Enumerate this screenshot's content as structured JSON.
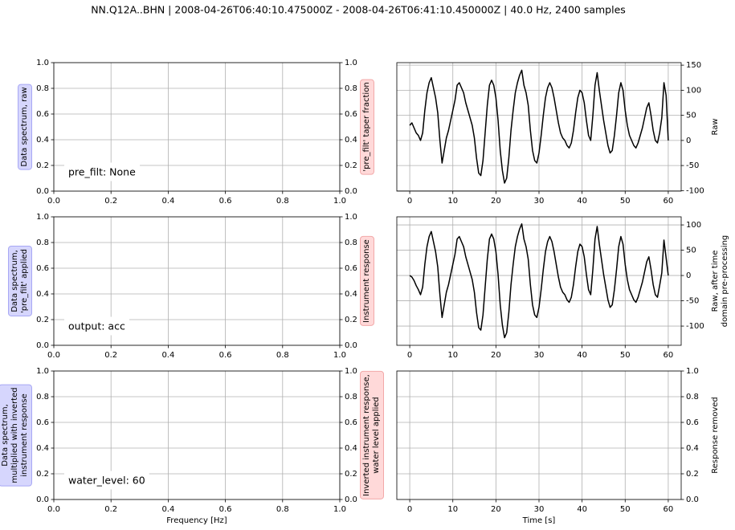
{
  "title": "NN.Q12A..BHN | 2008-04-26T06:40:10.475000Z - 2008-04-26T06:41:10.450000Z | 40.0 Hz, 2400 samples",
  "chart_data": [
    {
      "type": "line",
      "ylabel": "Data spectrum, raw",
      "y2label": "'pre_filt' taper fraction",
      "annotation": "pre_filt: None",
      "xlim": [
        0,
        1
      ],
      "xticks": [
        {
          "value": 0,
          "label": "0.0"
        },
        0.2,
        0.4,
        0.6,
        0.8,
        {
          "value": 1,
          "label": "1.0"
        }
      ],
      "ylim": [
        0,
        1
      ],
      "yticks": [
        {
          "value": 0,
          "label": "0.0"
        },
        0.2,
        0.4,
        0.6,
        0.8,
        {
          "value": 1,
          "label": "1.0"
        }
      ],
      "y2lim": [
        0,
        1
      ],
      "y2ticks": [
        {
          "value": 0,
          "label": "0.0"
        },
        0.2,
        0.4,
        0.6,
        0.8,
        {
          "value": 1,
          "label": "1.0"
        }
      ],
      "grid": true,
      "series": []
    },
    {
      "type": "line",
      "ylabel": "Raw",
      "y_side": "right",
      "xlim": [
        -3,
        63
      ],
      "xticks": [
        0,
        10,
        20,
        30,
        40,
        50,
        60
      ],
      "ylim": [
        -101,
        155
      ],
      "yticks": [
        -100,
        -50,
        0,
        50,
        100,
        150
      ],
      "grid": true,
      "x": [
        0,
        0.5,
        1,
        1.5,
        2,
        2.5,
        3,
        3.5,
        4,
        4.5,
        5,
        5.5,
        6,
        6.5,
        7,
        7.5,
        8,
        8.5,
        9,
        9.5,
        10,
        10.5,
        11,
        11.5,
        12,
        12.5,
        13,
        13.5,
        14,
        14.5,
        15,
        15.5,
        16,
        16.5,
        17,
        17.5,
        18,
        18.5,
        19,
        19.5,
        20,
        20.5,
        21,
        21.5,
        22,
        22.5,
        23,
        23.5,
        24,
        24.5,
        25,
        25.5,
        26,
        26.5,
        27,
        27.5,
        28,
        28.5,
        29,
        29.5,
        30,
        30.5,
        31,
        31.5,
        32,
        32.5,
        33,
        33.5,
        34,
        34.5,
        35,
        35.5,
        36,
        36.5,
        37,
        37.5,
        38,
        38.5,
        39,
        39.5,
        40,
        40.5,
        41,
        41.5,
        42,
        42.5,
        43,
        43.5,
        44,
        44.5,
        45,
        45.5,
        46,
        46.5,
        47,
        47.5,
        48,
        48.5,
        49,
        49.5,
        50,
        50.5,
        51,
        51.5,
        52,
        52.5,
        53,
        53.5,
        54,
        54.5,
        55,
        55.5,
        56,
        56.5,
        57,
        57.5,
        58,
        58.5,
        59,
        59.5,
        60
      ],
      "series": [
        {
          "color": "#000000",
          "values": [
            30,
            35,
            25,
            15,
            10,
            0,
            15,
            60,
            95,
            115,
            125,
            105,
            85,
            55,
            0,
            -45,
            -20,
            5,
            20,
            40,
            60,
            80,
            110,
            115,
            105,
            95,
            75,
            60,
            45,
            30,
            5,
            -35,
            -65,
            -70,
            -40,
            15,
            70,
            110,
            120,
            110,
            85,
            40,
            -20,
            -60,
            -85,
            -75,
            -35,
            20,
            60,
            95,
            115,
            130,
            140,
            110,
            95,
            70,
            20,
            -20,
            -40,
            -45,
            -25,
            10,
            50,
            85,
            105,
            115,
            105,
            85,
            60,
            35,
            15,
            5,
            0,
            -10,
            -15,
            -5,
            20,
            55,
            85,
            100,
            95,
            75,
            40,
            10,
            0,
            50,
            110,
            135,
            100,
            70,
            40,
            15,
            -10,
            -25,
            -20,
            10,
            50,
            95,
            115,
            100,
            60,
            30,
            10,
            0,
            -10,
            -15,
            -5,
            10,
            25,
            45,
            65,
            75,
            50,
            20,
            0,
            -5,
            15,
            45,
            115,
            90,
            0
          ]
        }
      ]
    },
    {
      "type": "line",
      "ylabel": "Data spectrum,\n'pre_filt' applied",
      "y2label": "Instrument response",
      "annotation": "output: acc",
      "xlim": [
        0,
        1
      ],
      "xticks": [
        {
          "value": 0,
          "label": "0.0"
        },
        0.2,
        0.4,
        0.6,
        0.8,
        {
          "value": 1,
          "label": "1.0"
        }
      ],
      "ylim": [
        0,
        1
      ],
      "yticks": [
        {
          "value": 0,
          "label": "0.0"
        },
        0.2,
        0.4,
        0.6,
        0.8,
        {
          "value": 1,
          "label": "1.0"
        }
      ],
      "y2lim": [
        0,
        1
      ],
      "y2ticks": [
        {
          "value": 0,
          "label": "0.0"
        },
        0.2,
        0.4,
        0.6,
        0.8,
        {
          "value": 1,
          "label": "1.0"
        }
      ],
      "grid": true,
      "series": []
    },
    {
      "type": "line",
      "ylabel": "Raw, after time\ndomain pre-processing",
      "y_side": "right",
      "xlim": [
        -3,
        63
      ],
      "xticks": [
        0,
        10,
        20,
        30,
        40,
        50,
        60
      ],
      "ylim": [
        -138,
        116
      ],
      "yticks": [
        -100,
        -50,
        0,
        50,
        100
      ],
      "grid": true,
      "x": [
        0,
        0.5,
        1,
        1.5,
        2,
        2.5,
        3,
        3.5,
        4,
        4.5,
        5,
        5.5,
        6,
        6.5,
        7,
        7.5,
        8,
        8.5,
        9,
        9.5,
        10,
        10.5,
        11,
        11.5,
        12,
        12.5,
        13,
        13.5,
        14,
        14.5,
        15,
        15.5,
        16,
        16.5,
        17,
        17.5,
        18,
        18.5,
        19,
        19.5,
        20,
        20.5,
        21,
        21.5,
        22,
        22.5,
        23,
        23.5,
        24,
        24.5,
        25,
        25.5,
        26,
        26.5,
        27,
        27.5,
        28,
        28.5,
        29,
        29.5,
        30,
        30.5,
        31,
        31.5,
        32,
        32.5,
        33,
        33.5,
        34,
        34.5,
        35,
        35.5,
        36,
        36.5,
        37,
        37.5,
        38,
        38.5,
        39,
        39.5,
        40,
        40.5,
        41,
        41.5,
        42,
        42.5,
        43,
        43.5,
        44,
        44.5,
        45,
        45.5,
        46,
        46.5,
        47,
        47.5,
        48,
        48.5,
        49,
        49.5,
        50,
        50.5,
        51,
        51.5,
        52,
        52.5,
        53,
        53.5,
        54,
        54.5,
        55,
        55.5,
        56,
        56.5,
        57,
        57.5,
        58,
        58.5,
        59,
        59.5,
        60
      ],
      "series": [
        {
          "color": "#000000",
          "values": [
            0,
            -3,
            -10,
            -20,
            -28,
            -38,
            -23,
            22,
            57,
            77,
            87,
            67,
            47,
            17,
            -38,
            -83,
            -58,
            -33,
            -18,
            2,
            22,
            42,
            72,
            77,
            67,
            57,
            37,
            22,
            7,
            -8,
            -33,
            -73,
            -103,
            -108,
            -78,
            -23,
            32,
            72,
            82,
            72,
            47,
            2,
            -58,
            -98,
            -123,
            -113,
            -73,
            -18,
            22,
            57,
            77,
            92,
            102,
            72,
            57,
            32,
            -18,
            -58,
            -78,
            -83,
            -63,
            -28,
            12,
            47,
            67,
            77,
            67,
            47,
            22,
            -3,
            -23,
            -33,
            -38,
            -48,
            -53,
            -43,
            -18,
            17,
            47,
            62,
            57,
            37,
            2,
            -28,
            -38,
            12,
            72,
            97,
            62,
            32,
            2,
            -23,
            -48,
            -63,
            -58,
            -28,
            12,
            57,
            77,
            62,
            22,
            -8,
            -28,
            -38,
            -48,
            -53,
            -43,
            -28,
            -13,
            7,
            27,
            37,
            12,
            -18,
            -38,
            -43,
            -20,
            5,
            70,
            35,
            0
          ]
        }
      ]
    },
    {
      "type": "line",
      "ylabel": "Data spectrum,\nmultiplied with inverted\ninstrument response",
      "y2label": "Inverted instrument response,\nwater level applied",
      "annotation": "water_level: 60",
      "xlabel": "Frequency [Hz]",
      "xlim": [
        0,
        1
      ],
      "xticks": [
        {
          "value": 0,
          "label": "0.0"
        },
        0.2,
        0.4,
        0.6,
        0.8,
        {
          "value": 1,
          "label": "1.0"
        }
      ],
      "ylim": [
        0,
        1
      ],
      "yticks": [
        {
          "value": 0,
          "label": "0.0"
        },
        0.2,
        0.4,
        0.6,
        0.8,
        {
          "value": 1,
          "label": "1.0"
        }
      ],
      "y2lim": [
        0,
        1
      ],
      "y2ticks": [
        {
          "value": 0,
          "label": "0.0"
        },
        0.2,
        0.4,
        0.6,
        0.8,
        {
          "value": 1,
          "label": "1.0"
        }
      ],
      "grid": true,
      "series": []
    },
    {
      "type": "line",
      "ylabel": "Response removed",
      "y_side": "right",
      "xlabel": "Time [s]",
      "xlim": [
        -3,
        63
      ],
      "xticks": [
        0,
        10,
        20,
        30,
        40,
        50,
        60
      ],
      "ylim": [
        0,
        1
      ],
      "yticks": [
        {
          "value": 0,
          "label": "0.0"
        },
        0.2,
        0.4,
        0.6,
        0.8,
        {
          "value": 1,
          "label": "1.0"
        }
      ],
      "grid": true,
      "series": []
    }
  ]
}
